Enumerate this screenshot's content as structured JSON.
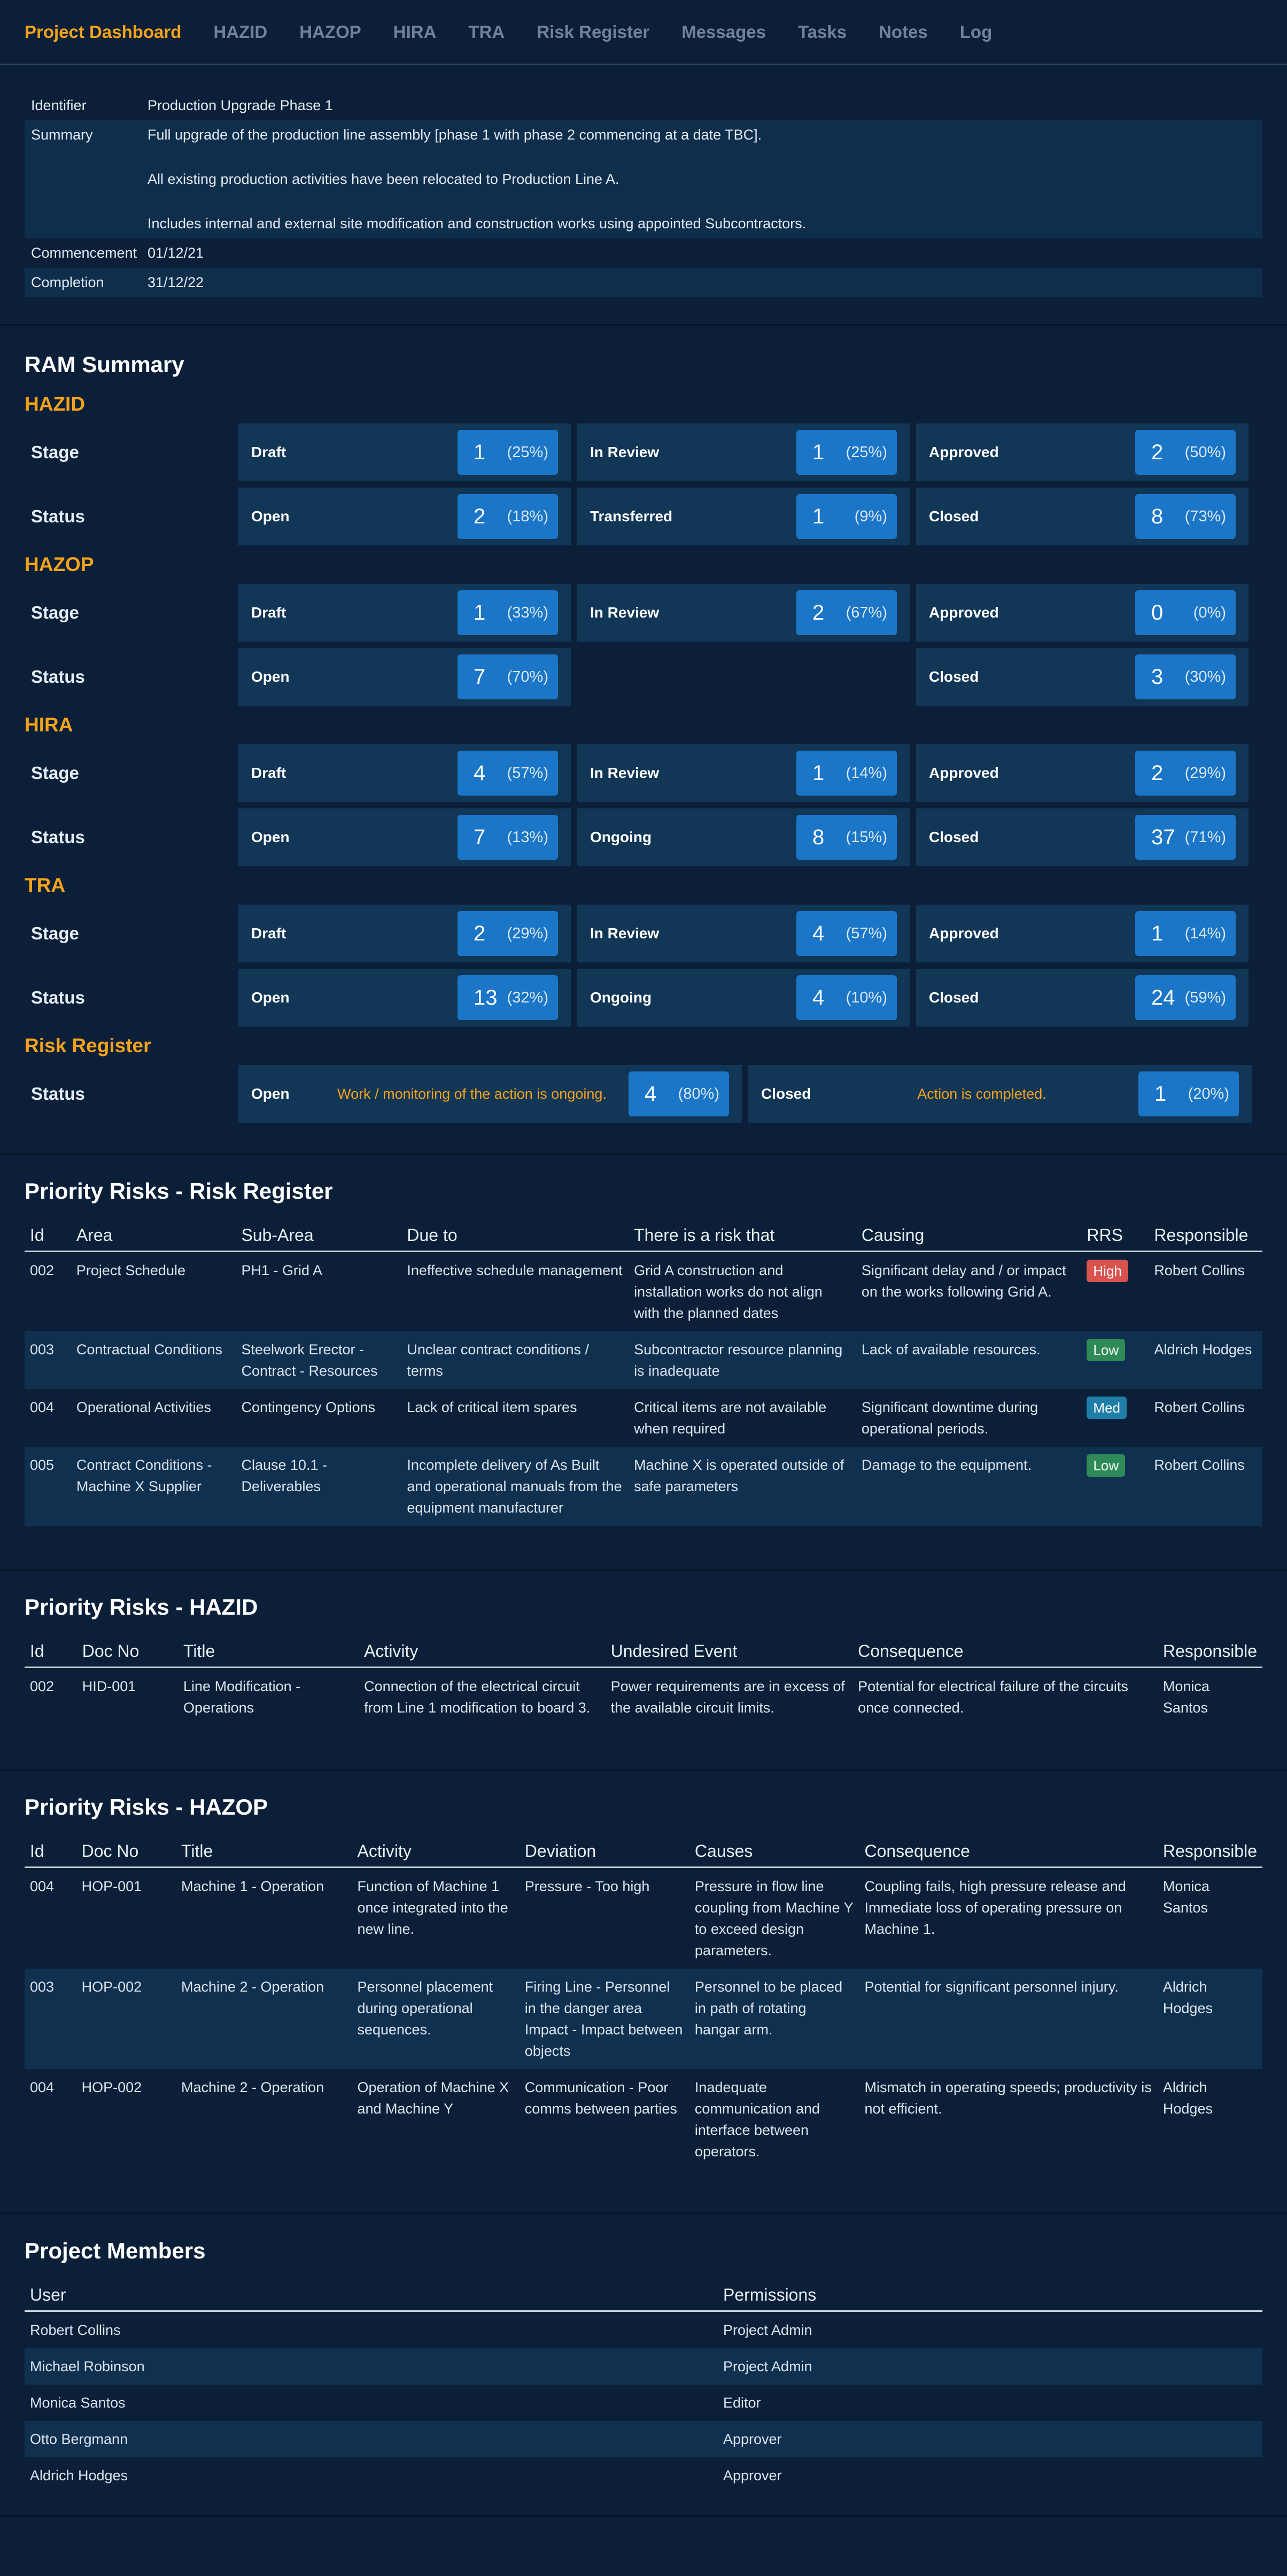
{
  "nav": [
    "Project Dashboard",
    "HAZID",
    "HAZOP",
    "HIRA",
    "TRA",
    "Risk Register",
    "Messages",
    "Tasks",
    "Notes",
    "Log"
  ],
  "project": {
    "identifier_label": "Identifier",
    "identifier": "Production Upgrade Phase 1",
    "summary_label": "Summary",
    "summary": [
      "Full upgrade of the production line assembly [phase 1 with phase 2 commencing at a date TBC].",
      "All existing production activities have been relocated to Production Line A.",
      "Includes internal and external site modification and construction works using appointed Subcontractors."
    ],
    "commencement_label": "Commencement",
    "commencement": "01/12/21",
    "completion_label": "Completion",
    "completion": "31/12/22"
  },
  "ram": {
    "title": "RAM Summary",
    "groups": [
      {
        "name": "HAZID",
        "rows": [
          {
            "label": "Stage",
            "cells": [
              {
                "name": "Draft",
                "num": "1",
                "pct": "(25%)"
              },
              {
                "name": "In Review",
                "num": "1",
                "pct": "(25%)"
              },
              {
                "name": "Approved",
                "num": "2",
                "pct": "(50%)"
              }
            ]
          },
          {
            "label": "Status",
            "cells": [
              {
                "name": "Open",
                "num": "2",
                "pct": "(18%)"
              },
              {
                "name": "Transferred",
                "num": "1",
                "pct": "(9%)"
              },
              {
                "name": "Closed",
                "num": "8",
                "pct": "(73%)"
              }
            ]
          }
        ]
      },
      {
        "name": "HAZOP",
        "rows": [
          {
            "label": "Stage",
            "cells": [
              {
                "name": "Draft",
                "num": "1",
                "pct": "(33%)"
              },
              {
                "name": "In Review",
                "num": "2",
                "pct": "(67%)"
              },
              {
                "name": "Approved",
                "num": "0",
                "pct": "(0%)"
              }
            ]
          },
          {
            "label": "Status",
            "cells": [
              {
                "name": "Open",
                "num": "7",
                "pct": "(70%)"
              },
              null,
              {
                "name": "Closed",
                "num": "3",
                "pct": "(30%)"
              }
            ]
          }
        ]
      },
      {
        "name": "HIRA",
        "rows": [
          {
            "label": "Stage",
            "cells": [
              {
                "name": "Draft",
                "num": "4",
                "pct": "(57%)"
              },
              {
                "name": "In Review",
                "num": "1",
                "pct": "(14%)"
              },
              {
                "name": "Approved",
                "num": "2",
                "pct": "(29%)"
              }
            ]
          },
          {
            "label": "Status",
            "cells": [
              {
                "name": "Open",
                "num": "7",
                "pct": "(13%)"
              },
              {
                "name": "Ongoing",
                "num": "8",
                "pct": "(15%)"
              },
              {
                "name": "Closed",
                "num": "37",
                "pct": "(71%)"
              }
            ]
          }
        ]
      },
      {
        "name": "TRA",
        "rows": [
          {
            "label": "Stage",
            "cells": [
              {
                "name": "Draft",
                "num": "2",
                "pct": "(29%)"
              },
              {
                "name": "In Review",
                "num": "4",
                "pct": "(57%)"
              },
              {
                "name": "Approved",
                "num": "1",
                "pct": "(14%)"
              }
            ]
          },
          {
            "label": "Status",
            "cells": [
              {
                "name": "Open",
                "num": "13",
                "pct": "(32%)"
              },
              {
                "name": "Ongoing",
                "num": "4",
                "pct": "(10%)"
              },
              {
                "name": "Closed",
                "num": "24",
                "pct": "(59%)"
              }
            ]
          }
        ]
      }
    ],
    "risk_register": {
      "name": "Risk Register",
      "label": "Status",
      "cells": [
        {
          "name": "Open",
          "note": "Work / monitoring of the action is ongoing.",
          "num": "4",
          "pct": "(80%)"
        },
        {
          "name": "Closed",
          "note": "Action is completed.",
          "num": "1",
          "pct": "(20%)"
        }
      ]
    }
  },
  "risk_register_table": {
    "title": "Priority Risks - Risk Register",
    "headers": [
      "Id",
      "Area",
      "Sub-Area",
      "Due to",
      "There is a risk that",
      "Causing",
      "RRS",
      "Responsible"
    ],
    "rows": [
      [
        "002",
        "Project Schedule",
        "PH1 - Grid A",
        "Ineffective schedule management",
        "Grid A construction and installation works do not align with the planned dates",
        "Significant delay and / or impact on the works following Grid A.",
        "High",
        "Robert Collins"
      ],
      [
        "003",
        "Contractual Conditions",
        "Steelwork Erector - Contract - Resources",
        "Unclear contract conditions / terms",
        "Subcontractor resource planning is inadequate",
        "Lack of available resources.",
        "Low",
        "Aldrich Hodges"
      ],
      [
        "004",
        "Operational Activities",
        "Contingency Options",
        "Lack of critical item spares",
        "Critical items are not available when required",
        "Significant downtime during operational periods.",
        "Med",
        "Robert Collins"
      ],
      [
        "005",
        "Contract Conditions - Machine X Supplier",
        "Clause 10.1 - Deliverables",
        "Incomplete delivery of As Built and operational manuals from the equipment manufacturer",
        "Machine X is operated outside of safe parameters",
        "Damage to the equipment.",
        "Low",
        "Robert Collins"
      ]
    ]
  },
  "hazid_table": {
    "title": "Priority Risks - HAZID",
    "headers": [
      "Id",
      "Doc No",
      "Title",
      "Activity",
      "Undesired Event",
      "Consequence",
      "Responsible"
    ],
    "rows": [
      [
        "002",
        "HID-001",
        "Line Modification - Operations",
        "Connection of the electrical circuit from Line 1 modification to board 3.",
        "Power requirements are in excess of the available circuit limits.",
        "Potential for electrical failure of the circuits once connected.",
        "Monica Santos"
      ]
    ]
  },
  "hazop_table": {
    "title": "Priority Risks - HAZOP",
    "headers": [
      "Id",
      "Doc No",
      "Title",
      "Activity",
      "Deviation",
      "Causes",
      "Consequence",
      "Responsible"
    ],
    "rows": [
      [
        "004",
        "HOP-001",
        "Machine 1 - Operation",
        "Function of Machine 1 once integrated into the new line.",
        "Pressure - Too high",
        "Pressure in flow line coupling from Machine Y to exceed design parameters.",
        "Coupling fails, high pressure release and Immediate loss of operating pressure on Machine 1.",
        "Monica Santos"
      ],
      [
        "003",
        "HOP-002",
        "Machine 2 - Operation",
        "Personnel placement during operational sequences.",
        "Firing Line - Personnel in the danger area Impact - Impact between objects",
        "Personnel to be placed in path of rotating hangar arm.",
        "Potential for significant personnel injury.",
        "Aldrich Hodges"
      ],
      [
        "004",
        "HOP-002",
        "Machine 2 - Operation",
        "Operation of Machine X and Machine Y",
        "Communication - Poor comms between parties",
        "Inadequate communication and interface between operators.",
        "Mismatch in operating speeds; productivity is not efficient.",
        "Aldrich Hodges"
      ]
    ]
  },
  "members": {
    "title": "Project Members",
    "headers": [
      "User",
      "Permissions"
    ],
    "rows": [
      [
        "Robert Collins",
        "Project Admin"
      ],
      [
        "Michael Robinson",
        "Project Admin"
      ],
      [
        "Monica Santos",
        "Editor"
      ],
      [
        "Otto Bergmann",
        "Approver"
      ],
      [
        "Aldrich Hodges",
        "Approver"
      ]
    ]
  }
}
